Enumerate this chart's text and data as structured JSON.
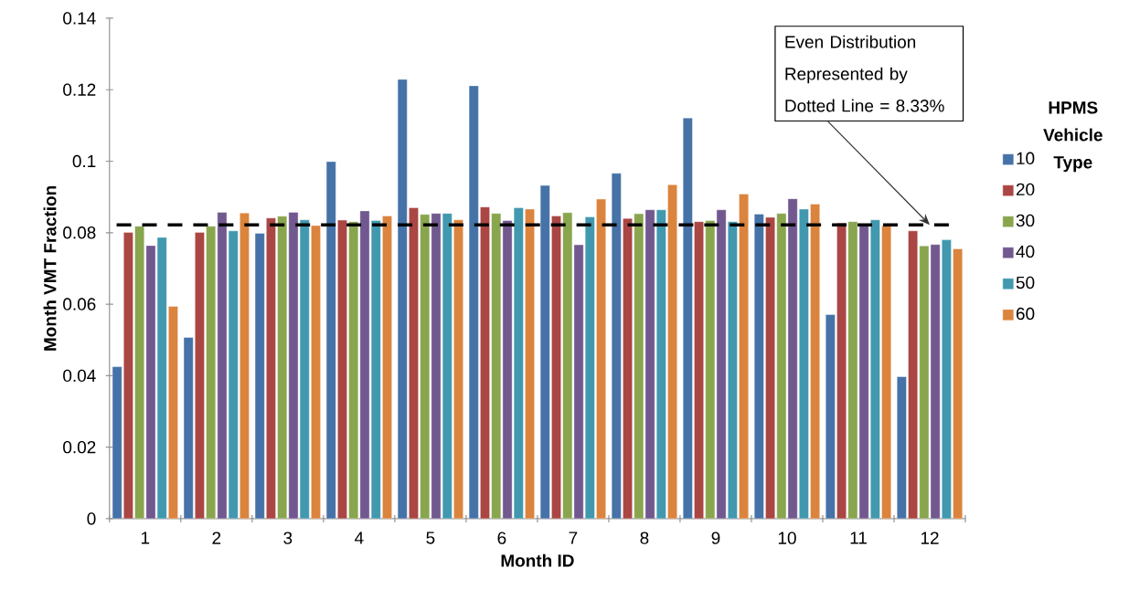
{
  "chart_data": {
    "type": "bar",
    "xlabel": "Month ID",
    "ylabel": "Month VMT Fraction",
    "legend_title": "HPMS Vehicle Type",
    "categories": [
      "1",
      "2",
      "3",
      "4",
      "5",
      "6",
      "7",
      "8",
      "9",
      "10",
      "11",
      "12"
    ],
    "series": [
      {
        "name": "10",
        "color": "#4572a7",
        "values": [
          0.0425,
          0.0507,
          0.0798,
          0.0999,
          0.1229,
          0.1211,
          0.0932,
          0.0966,
          0.1121,
          0.0852,
          0.0571,
          0.0397
        ]
      },
      {
        "name": "20",
        "color": "#aa4643",
        "values": [
          0.0801,
          0.0801,
          0.0841,
          0.0835,
          0.087,
          0.0872,
          0.0847,
          0.084,
          0.0831,
          0.0843,
          0.0827,
          0.0805
        ]
      },
      {
        "name": "30",
        "color": "#89a54e",
        "values": [
          0.0818,
          0.0818,
          0.0846,
          0.0831,
          0.0851,
          0.0854,
          0.0856,
          0.0853,
          0.0834,
          0.0854,
          0.0831,
          0.0763
        ]
      },
      {
        "name": "40",
        "color": "#71588f",
        "values": [
          0.0764,
          0.0857,
          0.0857,
          0.0861,
          0.0854,
          0.0834,
          0.0766,
          0.0864,
          0.0864,
          0.0895,
          0.0825,
          0.0767
        ]
      },
      {
        "name": "50",
        "color": "#4198af",
        "values": [
          0.0787,
          0.0805,
          0.0836,
          0.0834,
          0.0854,
          0.087,
          0.0844,
          0.0864,
          0.0831,
          0.0866,
          0.0836,
          0.078
        ]
      },
      {
        "name": "60",
        "color": "#db843d",
        "values": [
          0.0594,
          0.0855,
          0.082,
          0.0847,
          0.0836,
          0.0866,
          0.0894,
          0.0934,
          0.0908,
          0.088,
          0.0819,
          0.0755
        ]
      }
    ],
    "ylim": [
      0,
      0.14
    ],
    "yticks": [
      0,
      0.02,
      0.04,
      0.06,
      0.08,
      0.1,
      0.12,
      0.14
    ],
    "ref_lines": [
      {
        "axis": "y",
        "value": 0.0822,
        "color": "#000000",
        "line_style": "dashed"
      }
    ],
    "annotations": [
      {
        "text": "Even Distribution Represented by Dotted Line = 8.33%",
        "x": "12",
        "y": 0.0822
      }
    ],
    "legend": "right",
    "grid": false
  }
}
